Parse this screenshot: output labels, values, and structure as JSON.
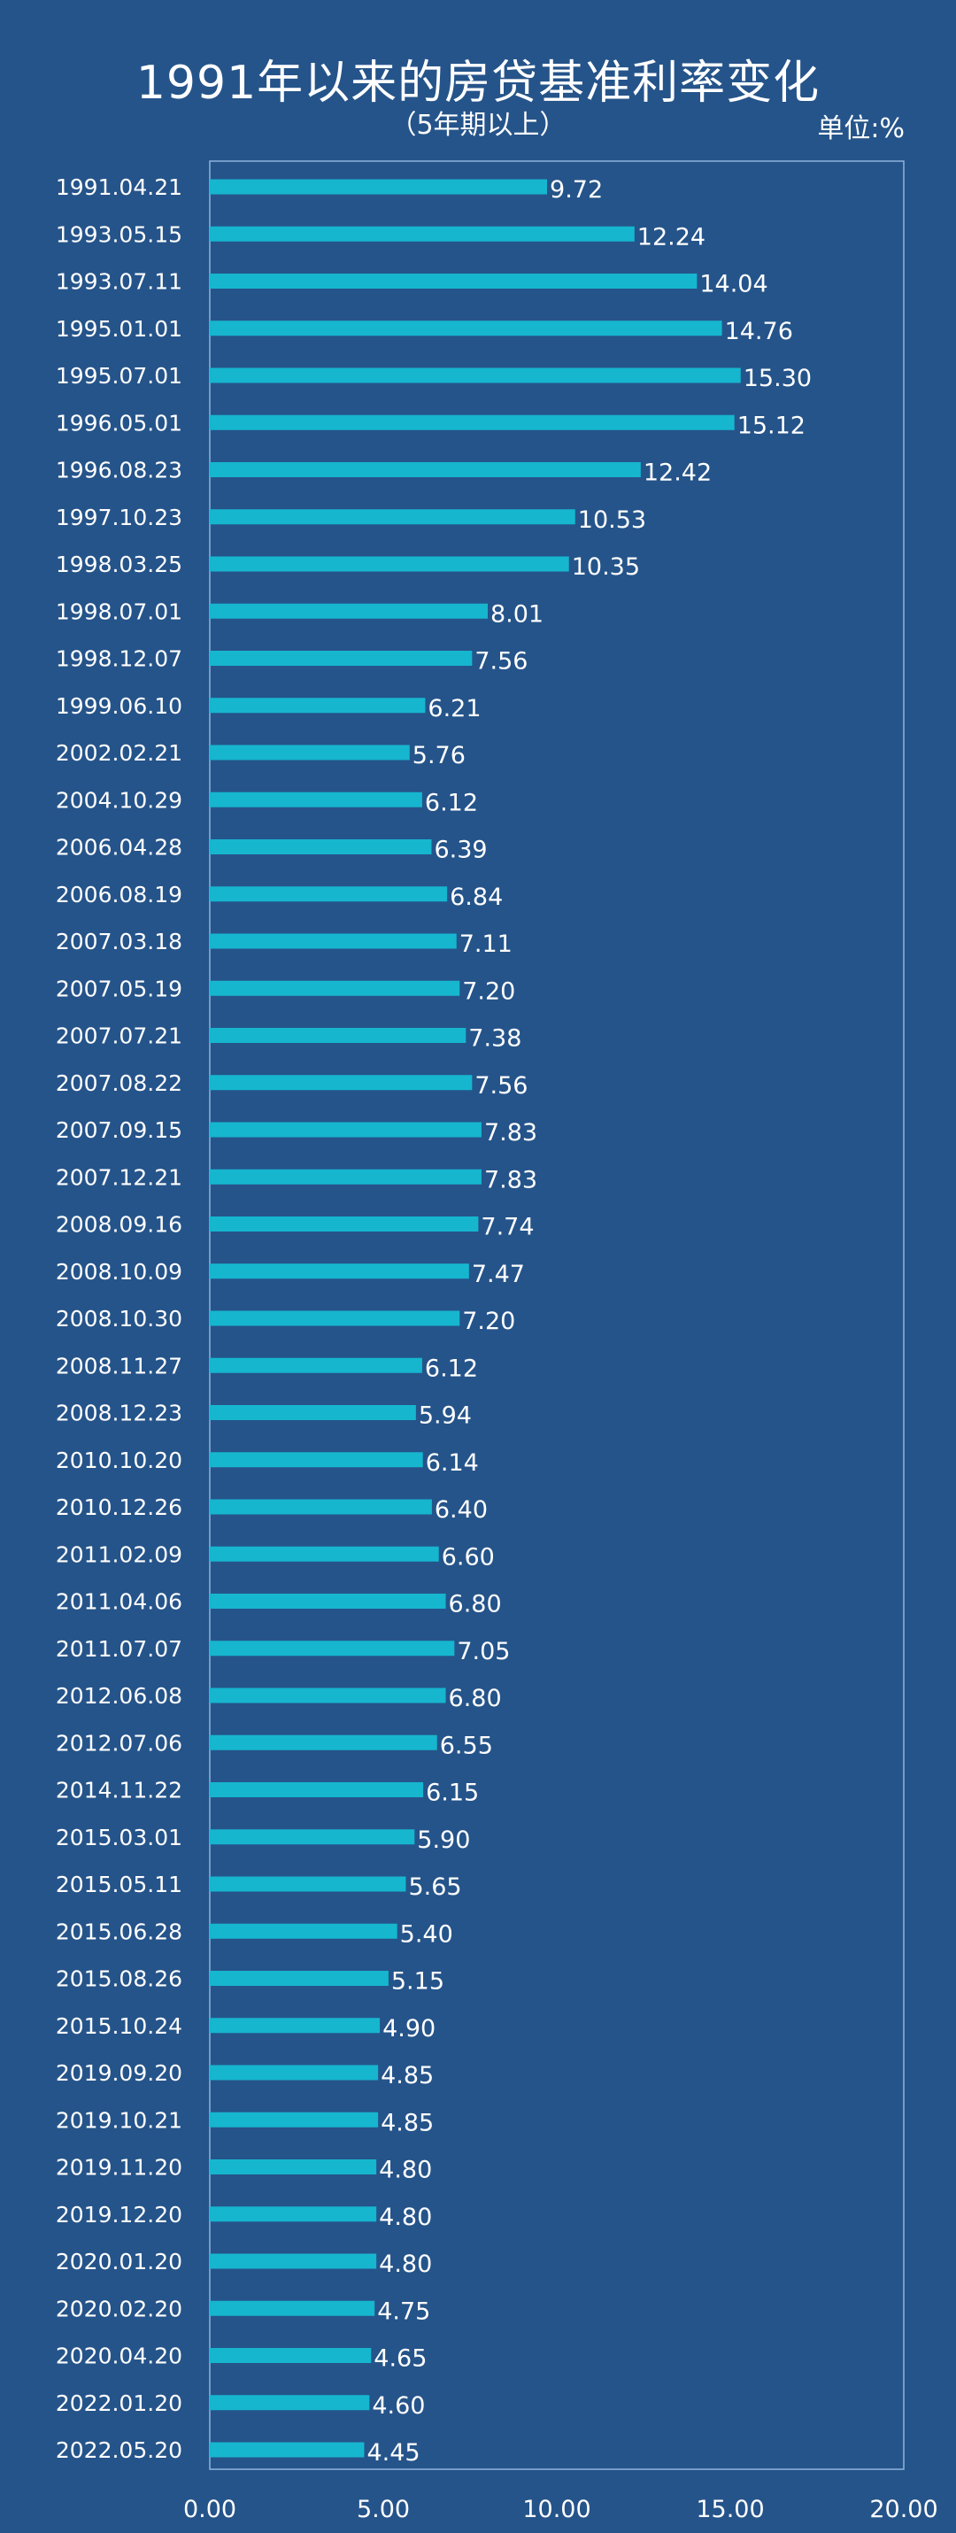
{
  "chart_data": {
    "type": "bar",
    "orientation": "horizontal",
    "title": "1991年以来的房贷基准利率变化",
    "subtitle": "（5年期以上）",
    "unit_label": "单位:%",
    "categories": [
      "1991.04.21",
      "1993.05.15",
      "1993.07.11",
      "1995.01.01",
      "1995.07.01",
      "1996.05.01",
      "1996.08.23",
      "1997.10.23",
      "1998.03.25",
      "1998.07.01",
      "1998.12.07",
      "1999.06.10",
      "2002.02.21",
      "2004.10.29",
      "2006.04.28",
      "2006.08.19",
      "2007.03.18",
      "2007.05.19",
      "2007.07.21",
      "2007.08.22",
      "2007.09.15",
      "2007.12.21",
      "2008.09.16",
      "2008.10.09",
      "2008.10.30",
      "2008.11.27",
      "2008.12.23",
      "2010.10.20",
      "2010.12.26",
      "2011.02.09",
      "2011.04.06",
      "2011.07.07",
      "2012.06.08",
      "2012.07.06",
      "2014.11.22",
      "2015.03.01",
      "2015.05.11",
      "2015.06.28",
      "2015.08.26",
      "2015.10.24",
      "2019.09.20",
      "2019.10.21",
      "2019.11.20",
      "2019.12.20",
      "2020.01.20",
      "2020.02.20",
      "2020.04.20",
      "2022.01.20",
      "2022.05.20"
    ],
    "values": [
      9.72,
      12.24,
      14.04,
      14.76,
      15.3,
      15.12,
      12.42,
      10.53,
      10.35,
      8.01,
      7.56,
      6.21,
      5.76,
      6.12,
      6.39,
      6.84,
      7.11,
      7.2,
      7.38,
      7.56,
      7.83,
      7.83,
      7.74,
      7.47,
      7.2,
      6.12,
      5.94,
      6.14,
      6.4,
      6.6,
      6.8,
      7.05,
      6.8,
      6.55,
      6.15,
      5.9,
      5.65,
      5.4,
      5.15,
      4.9,
      4.85,
      4.85,
      4.8,
      4.8,
      4.8,
      4.75,
      4.65,
      4.6,
      4.45
    ],
    "value_labels": [
      "9.72",
      "12.24",
      "14.04",
      "14.76",
      "15.30",
      "15.12",
      "12.42",
      "10.53",
      "10.35",
      "8.01",
      "7.56",
      "6.21",
      "5.76",
      "6.12",
      "6.39",
      "6.84",
      "7.11",
      "7.20",
      "7.38",
      "7.56",
      "7.83",
      "7.83",
      "7.74",
      "7.47",
      "7.20",
      "6.12",
      "5.94",
      "6.14",
      "6.40",
      "6.60",
      "6.80",
      "7.05",
      "6.80",
      "6.55",
      "6.15",
      "5.90",
      "5.65",
      "5.40",
      "5.15",
      "4.90",
      "4.85",
      "4.85",
      "4.80",
      "4.80",
      "4.80",
      "4.75",
      "4.65",
      "4.60",
      "4.45"
    ],
    "xlim": [
      0,
      20
    ],
    "xticks": [
      0,
      5,
      10,
      15,
      20
    ],
    "xtick_labels": [
      "0.00",
      "5.00",
      "10.00",
      "15.00",
      "20.00"
    ],
    "grid": false,
    "legend": "none",
    "colors": {
      "background": "#25548a",
      "bar": "#16b6cf",
      "text": "#ffffff",
      "frame": "#8fb4de"
    }
  }
}
